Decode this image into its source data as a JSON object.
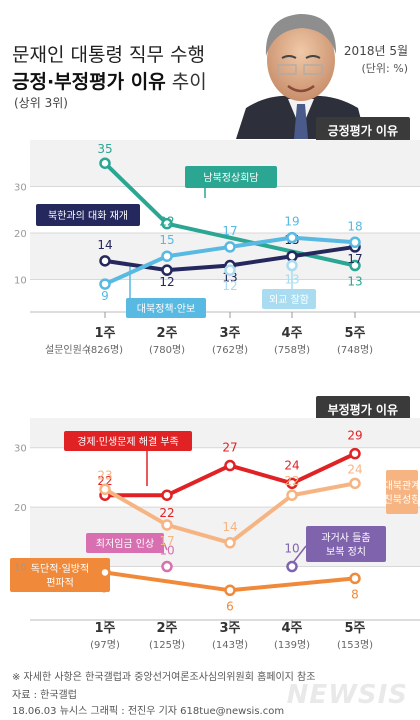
{
  "header": {
    "title_line1": "문재인 대통령 직무 수행",
    "title_bold": "긍정·부정평가 이유",
    "title_light": " 추이",
    "subtitle": "(상위 3위)",
    "date": "2018년 5월",
    "unit": "(단위: %)"
  },
  "sections": {
    "positive": "긍정평가 이유",
    "negative": "부정평가 이유"
  },
  "respondents_label": "설문인원수",
  "footer": {
    "note": "※ 자세한 사항은 한국갤럽과 중앙선거여론조사심의위원회 홈페이지 참조",
    "source": "자료 : 한국갤럽",
    "credit": "18.06.03  뉴시스 그래픽 : 전진우 기자  618tue@newsis.com",
    "logo": "NEWSIS"
  },
  "colors": {
    "teal": "#2aa692",
    "navy": "#24285c",
    "lightblue": "#58b9e2",
    "red": "#e12224",
    "peach": "#f7b483",
    "orange": "#f08a3a",
    "pink": "#d76fb0",
    "purple": "#7f63ad",
    "tag_bg": "#3a3a3a"
  },
  "chart_data": [
    {
      "type": "line",
      "section": "긍정평가 이유",
      "categories": [
        "1주",
        "2주",
        "3주",
        "4주",
        "5주"
      ],
      "respondents": [
        "(826명)",
        "(780명)",
        "(762명)",
        "(758명)",
        "(748명)"
      ],
      "yticks": [
        10,
        20,
        30
      ],
      "ylim": [
        3,
        40
      ],
      "series": [
        {
          "name": "남북정상회담",
          "color": "#2aa692",
          "values": [
            35,
            22,
            null,
            null,
            13
          ],
          "labels": [
            "35",
            "22",
            "",
            "",
            "13"
          ]
        },
        {
          "name": "북한과의 대화 재개",
          "color": "#24285c",
          "values": [
            14,
            12,
            13,
            15,
            17
          ],
          "labels": [
            "14",
            "12",
            "13",
            "15",
            "17"
          ]
        },
        {
          "name": "대북정책·안보",
          "color": "#58b9e2",
          "values": [
            9,
            15,
            17,
            19,
            18
          ],
          "labels": [
            "9",
            "15",
            "17",
            "19",
            "18"
          ]
        },
        {
          "name": "외교 잘함",
          "color": "#a9dcf0",
          "values": [
            null,
            null,
            12,
            13,
            null
          ],
          "labels": [
            "",
            "",
            "12",
            "13",
            ""
          ],
          "markers_only": true
        }
      ]
    },
    {
      "type": "line",
      "section": "부정평가 이유",
      "categories": [
        "1주",
        "2주",
        "3주",
        "4주",
        "5주"
      ],
      "respondents": [
        "(97명)",
        "(125명)",
        "(143명)",
        "(139명)",
        "(153명)"
      ],
      "yticks": [
        10,
        20,
        30
      ],
      "ylim": [
        1,
        35
      ],
      "series": [
        {
          "name": "경제·민생문제 해결 부족",
          "color": "#e12224",
          "values": [
            22,
            22,
            27,
            24,
            29
          ],
          "labels": [
            "22",
            "22",
            "27",
            "24",
            "29"
          ]
        },
        {
          "name": "대북관계 친북성향",
          "color": "#f7b483",
          "values": [
            23,
            17,
            14,
            22,
            24
          ],
          "labels": [
            "23",
            "17",
            "14",
            "22",
            "24"
          ]
        },
        {
          "name": "독단적·일방적 편파적",
          "color": "#f08a3a",
          "values": [
            9,
            null,
            6,
            null,
            8
          ],
          "labels": [
            "9",
            "",
            "6",
            "",
            "8"
          ]
        },
        {
          "name": "최저임금 인상",
          "color": "#d76fb0",
          "values": [
            null,
            10,
            null,
            null,
            null
          ],
          "labels": [
            "",
            "10",
            "",
            "",
            ""
          ],
          "markers_only": true
        },
        {
          "name": "과거사 들춤 보복 정치",
          "color": "#7f63ad",
          "values": [
            null,
            null,
            null,
            10,
            null
          ],
          "labels": [
            "",
            "",
            "",
            "10",
            ""
          ],
          "markers_only": true
        }
      ]
    }
  ]
}
